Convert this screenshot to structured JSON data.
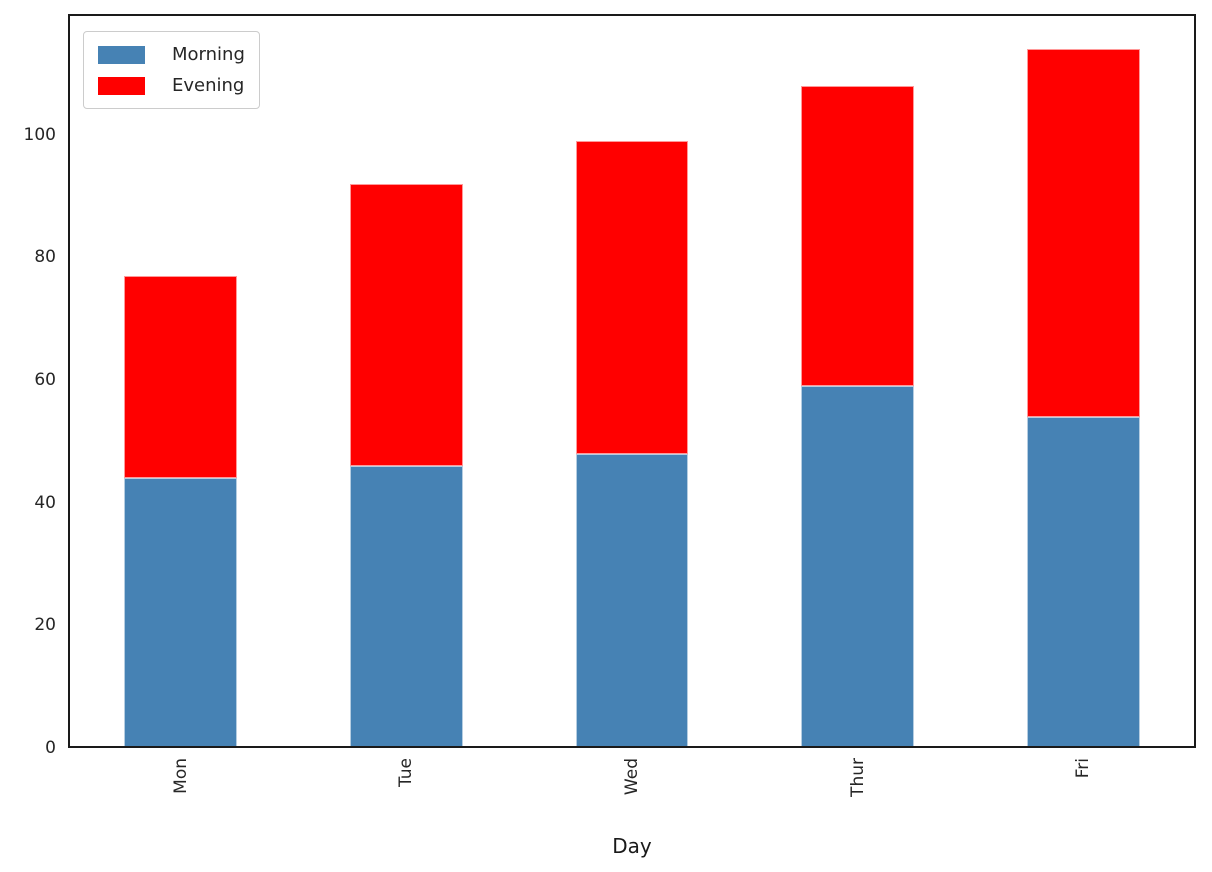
{
  "chart_data": {
    "type": "bar",
    "stacked": true,
    "title": "",
    "xlabel": "Day",
    "ylabel": "",
    "categories": [
      "Mon",
      "Tue",
      "Wed",
      "Thur",
      "Fri"
    ],
    "series": [
      {
        "name": "Morning",
        "color": "#4682B4",
        "values": [
          44,
          46,
          48,
          59,
          54
        ]
      },
      {
        "name": "Evening",
        "color": "#FF0000",
        "values": [
          33,
          46,
          51,
          49,
          60
        ]
      }
    ],
    "totals": [
      77,
      92,
      99,
      108,
      114
    ],
    "ylim": [
      0,
      119.7
    ],
    "yticks": [
      0,
      20,
      40,
      60,
      80,
      100
    ],
    "xtick_rotation_deg": 90,
    "bar_width_fraction": 0.5,
    "legend_position": "upper left",
    "grid": false,
    "colors": {
      "spine": "#1a1a1a",
      "tick_label": "#262626",
      "legend_border": "#cccccc",
      "background": "#ffffff"
    }
  }
}
